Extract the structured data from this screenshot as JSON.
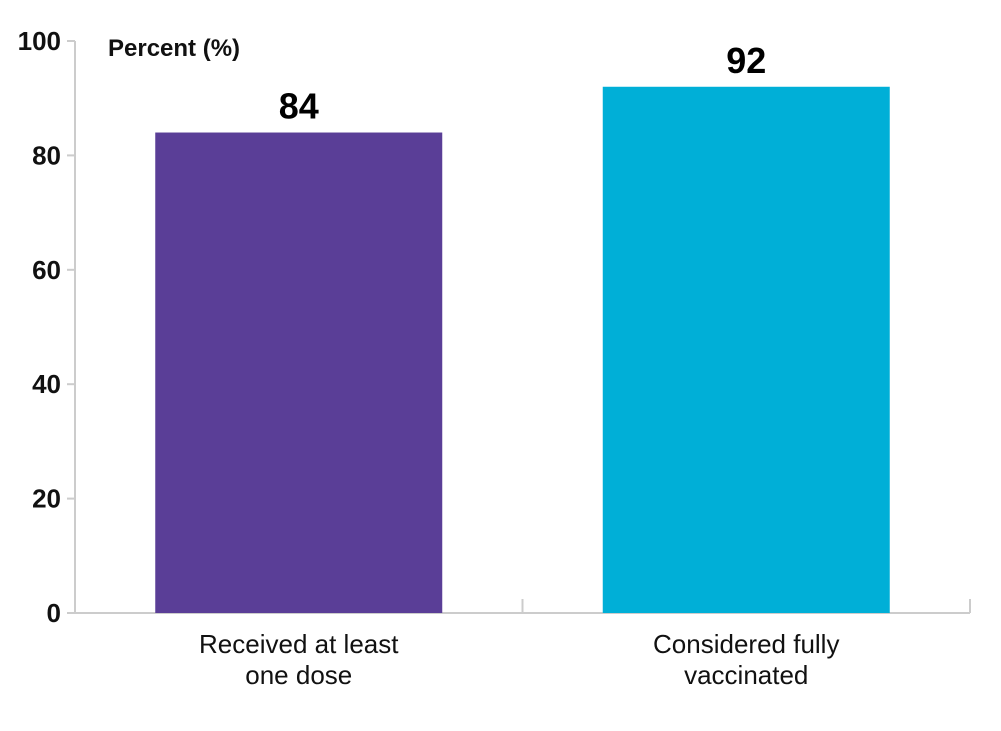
{
  "chart_data": {
    "type": "bar",
    "ylabel": "Percent (%)",
    "ylim": [
      0,
      100
    ],
    "yticks": [
      0,
      20,
      40,
      60,
      80,
      100
    ],
    "categories": [
      [
        "Received at least",
        "one dose"
      ],
      [
        "Considered fully",
        "vaccinated"
      ]
    ],
    "values": [
      84,
      92
    ],
    "colors": [
      "#5a3e97",
      "#00afd7"
    ],
    "grid": false
  }
}
